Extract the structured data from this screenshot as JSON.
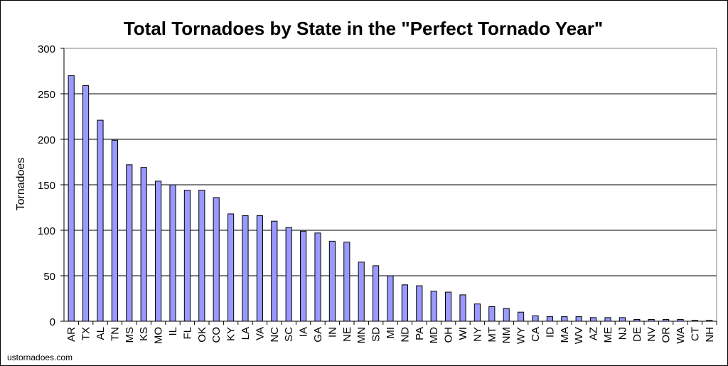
{
  "chart_data": {
    "type": "bar",
    "title": "Total Tornadoes by State in the \"Perfect Tornado Year\"",
    "ylabel": "Tornadoes",
    "xlabel": "",
    "ylim": [
      0,
      300
    ],
    "yticks": [
      0,
      50,
      100,
      150,
      200,
      250,
      300
    ],
    "grid": true,
    "legend": "none",
    "categories": [
      "AR",
      "TX",
      "AL",
      "TN",
      "MS",
      "KS",
      "MO",
      "IL",
      "FL",
      "OK",
      "CO",
      "KY",
      "LA",
      "VA",
      "NC",
      "SC",
      "IA",
      "GA",
      "IN",
      "NE",
      "MN",
      "SD",
      "MI",
      "ND",
      "PA",
      "MD",
      "OH",
      "WI",
      "NY",
      "MT",
      "NM",
      "WY",
      "CA",
      "ID",
      "MA",
      "WV",
      "AZ",
      "ME",
      "NJ",
      "DE",
      "NV",
      "OR",
      "WA",
      "CT",
      "NH"
    ],
    "values": [
      270,
      259,
      221,
      199,
      172,
      169,
      154,
      150,
      144,
      144,
      136,
      118,
      116,
      116,
      110,
      103,
      99,
      97,
      88,
      87,
      65,
      61,
      50,
      40,
      39,
      33,
      32,
      29,
      19,
      16,
      14,
      10,
      6,
      5,
      5,
      5,
      4,
      4,
      4,
      2,
      2,
      2,
      2,
      1,
      1
    ],
    "colors": {
      "bar_fill": "#9999ff",
      "bar_stroke": "#000000",
      "grid": "#000000",
      "plot_background": "#ffffff"
    }
  },
  "footer": {
    "credit": "ustornadoes.com"
  }
}
